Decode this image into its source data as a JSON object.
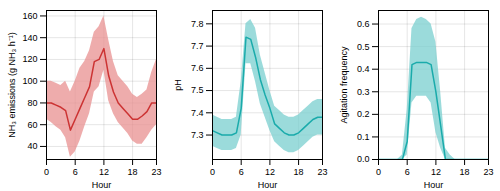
{
  "chart_data": [
    {
      "type": "line",
      "xlabel": "Hour",
      "ylabel": "NH₃ emissions (g NH₃ h⁻¹)",
      "x": [
        0,
        1,
        2,
        3,
        4,
        5,
        6,
        7,
        8,
        9,
        10,
        11,
        12,
        13,
        14,
        15,
        16,
        17,
        18,
        19,
        20,
        21,
        22,
        23
      ],
      "series": [
        {
          "type": "area",
          "color": "#e89090",
          "low": [
            65,
            62,
            58,
            55,
            48,
            30,
            35,
            45,
            58,
            70,
            90,
            95,
            110,
            82,
            70,
            62,
            57,
            52,
            45,
            42,
            42,
            48,
            55,
            60
          ],
          "high": [
            100,
            100,
            98,
            96,
            100,
            90,
            100,
            112,
            118,
            128,
            145,
            150,
            160,
            138,
            118,
            105,
            100,
            95,
            88,
            85,
            88,
            92,
            108,
            120
          ]
        },
        {
          "type": "line",
          "color": "#cc3333",
          "values": [
            80,
            80,
            78,
            76,
            73,
            55,
            65,
            75,
            85,
            95,
            118,
            120,
            130,
            105,
            90,
            80,
            75,
            70,
            65,
            65,
            68,
            72,
            80,
            80
          ]
        }
      ],
      "xlim": [
        0,
        23
      ],
      "xticks": [
        0,
        6,
        12,
        18,
        23
      ],
      "ylim": [
        28,
        165
      ],
      "yticks": [
        40,
        60,
        80,
        100,
        120,
        140,
        160
      ],
      "grid": true
    },
    {
      "type": "line",
      "xlabel": "Hour",
      "ylabel": "pH",
      "x": [
        0,
        1,
        2,
        3,
        4,
        5,
        6,
        7,
        8,
        9,
        10,
        11,
        12,
        13,
        14,
        15,
        16,
        17,
        18,
        19,
        20,
        21,
        22,
        23
      ],
      "series": [
        {
          "type": "area",
          "color": "#7acfcf",
          "low": [
            7.25,
            7.24,
            7.23,
            7.23,
            7.23,
            7.24,
            7.3,
            7.62,
            7.62,
            7.54,
            7.44,
            7.38,
            7.32,
            7.27,
            7.25,
            7.23,
            7.22,
            7.22,
            7.23,
            7.25,
            7.27,
            7.29,
            7.3,
            7.3
          ],
          "high": [
            7.39,
            7.38,
            7.37,
            7.37,
            7.37,
            7.38,
            7.54,
            7.8,
            7.82,
            7.78,
            7.66,
            7.58,
            7.5,
            7.43,
            7.41,
            7.39,
            7.38,
            7.38,
            7.39,
            7.41,
            7.43,
            7.45,
            7.46,
            7.46
          ]
        },
        {
          "type": "line",
          "color": "#1aabab",
          "values": [
            7.32,
            7.31,
            7.3,
            7.3,
            7.3,
            7.31,
            7.42,
            7.74,
            7.73,
            7.65,
            7.55,
            7.48,
            7.42,
            7.35,
            7.33,
            7.31,
            7.3,
            7.3,
            7.31,
            7.33,
            7.35,
            7.37,
            7.38,
            7.38
          ]
        }
      ],
      "xlim": [
        0,
        23
      ],
      "xticks": [
        0,
        6,
        12,
        18,
        23
      ],
      "ylim": [
        7.19,
        7.86
      ],
      "yticks": [
        7.3,
        7.4,
        7.5,
        7.6,
        7.7,
        7.8
      ],
      "grid": true
    },
    {
      "type": "line",
      "xlabel": "Hour",
      "ylabel": "Agitation frequency",
      "x": [
        0,
        1,
        2,
        3,
        4,
        5,
        6,
        7,
        8,
        9,
        10,
        11,
        12,
        13,
        14,
        15,
        16,
        17,
        18,
        19,
        20,
        21,
        22,
        23
      ],
      "series": [
        {
          "type": "area",
          "color": "#7acfcf",
          "low": [
            0.0,
            0.0,
            0.0,
            0.0,
            0.0,
            0.0,
            0.02,
            0.25,
            0.28,
            0.28,
            0.28,
            0.25,
            0.12,
            0.05,
            0.0,
            0.0,
            0.0,
            0.0,
            0.0,
            0.0,
            0.0,
            0.0,
            0.0,
            0.0
          ],
          "high": [
            0.0,
            0.0,
            0.0,
            0.0,
            0.0,
            0.02,
            0.22,
            0.58,
            0.62,
            0.63,
            0.62,
            0.6,
            0.52,
            0.3,
            0.05,
            0.02,
            0.0,
            0.0,
            0.0,
            0.0,
            0.0,
            0.0,
            0.0,
            0.0
          ]
        },
        {
          "type": "line",
          "color": "#1aabab",
          "values": [
            0.0,
            0.0,
            0.0,
            0.0,
            0.0,
            0.0,
            0.08,
            0.42,
            0.43,
            0.43,
            0.43,
            0.42,
            0.3,
            0.15,
            0.0,
            0.0,
            0.0,
            0.0,
            0.0,
            0.0,
            0.0,
            0.0,
            0.0,
            0.0
          ]
        }
      ],
      "xlim": [
        0,
        23
      ],
      "xticks": [
        0,
        6,
        12,
        18,
        23
      ],
      "ylim": [
        0.0,
        0.66
      ],
      "yticks": [
        {
          "value": 0.0,
          "label": "0.0"
        },
        0.1,
        0.2,
        0.3,
        0.4,
        0.5,
        0.6
      ],
      "grid": true
    }
  ]
}
